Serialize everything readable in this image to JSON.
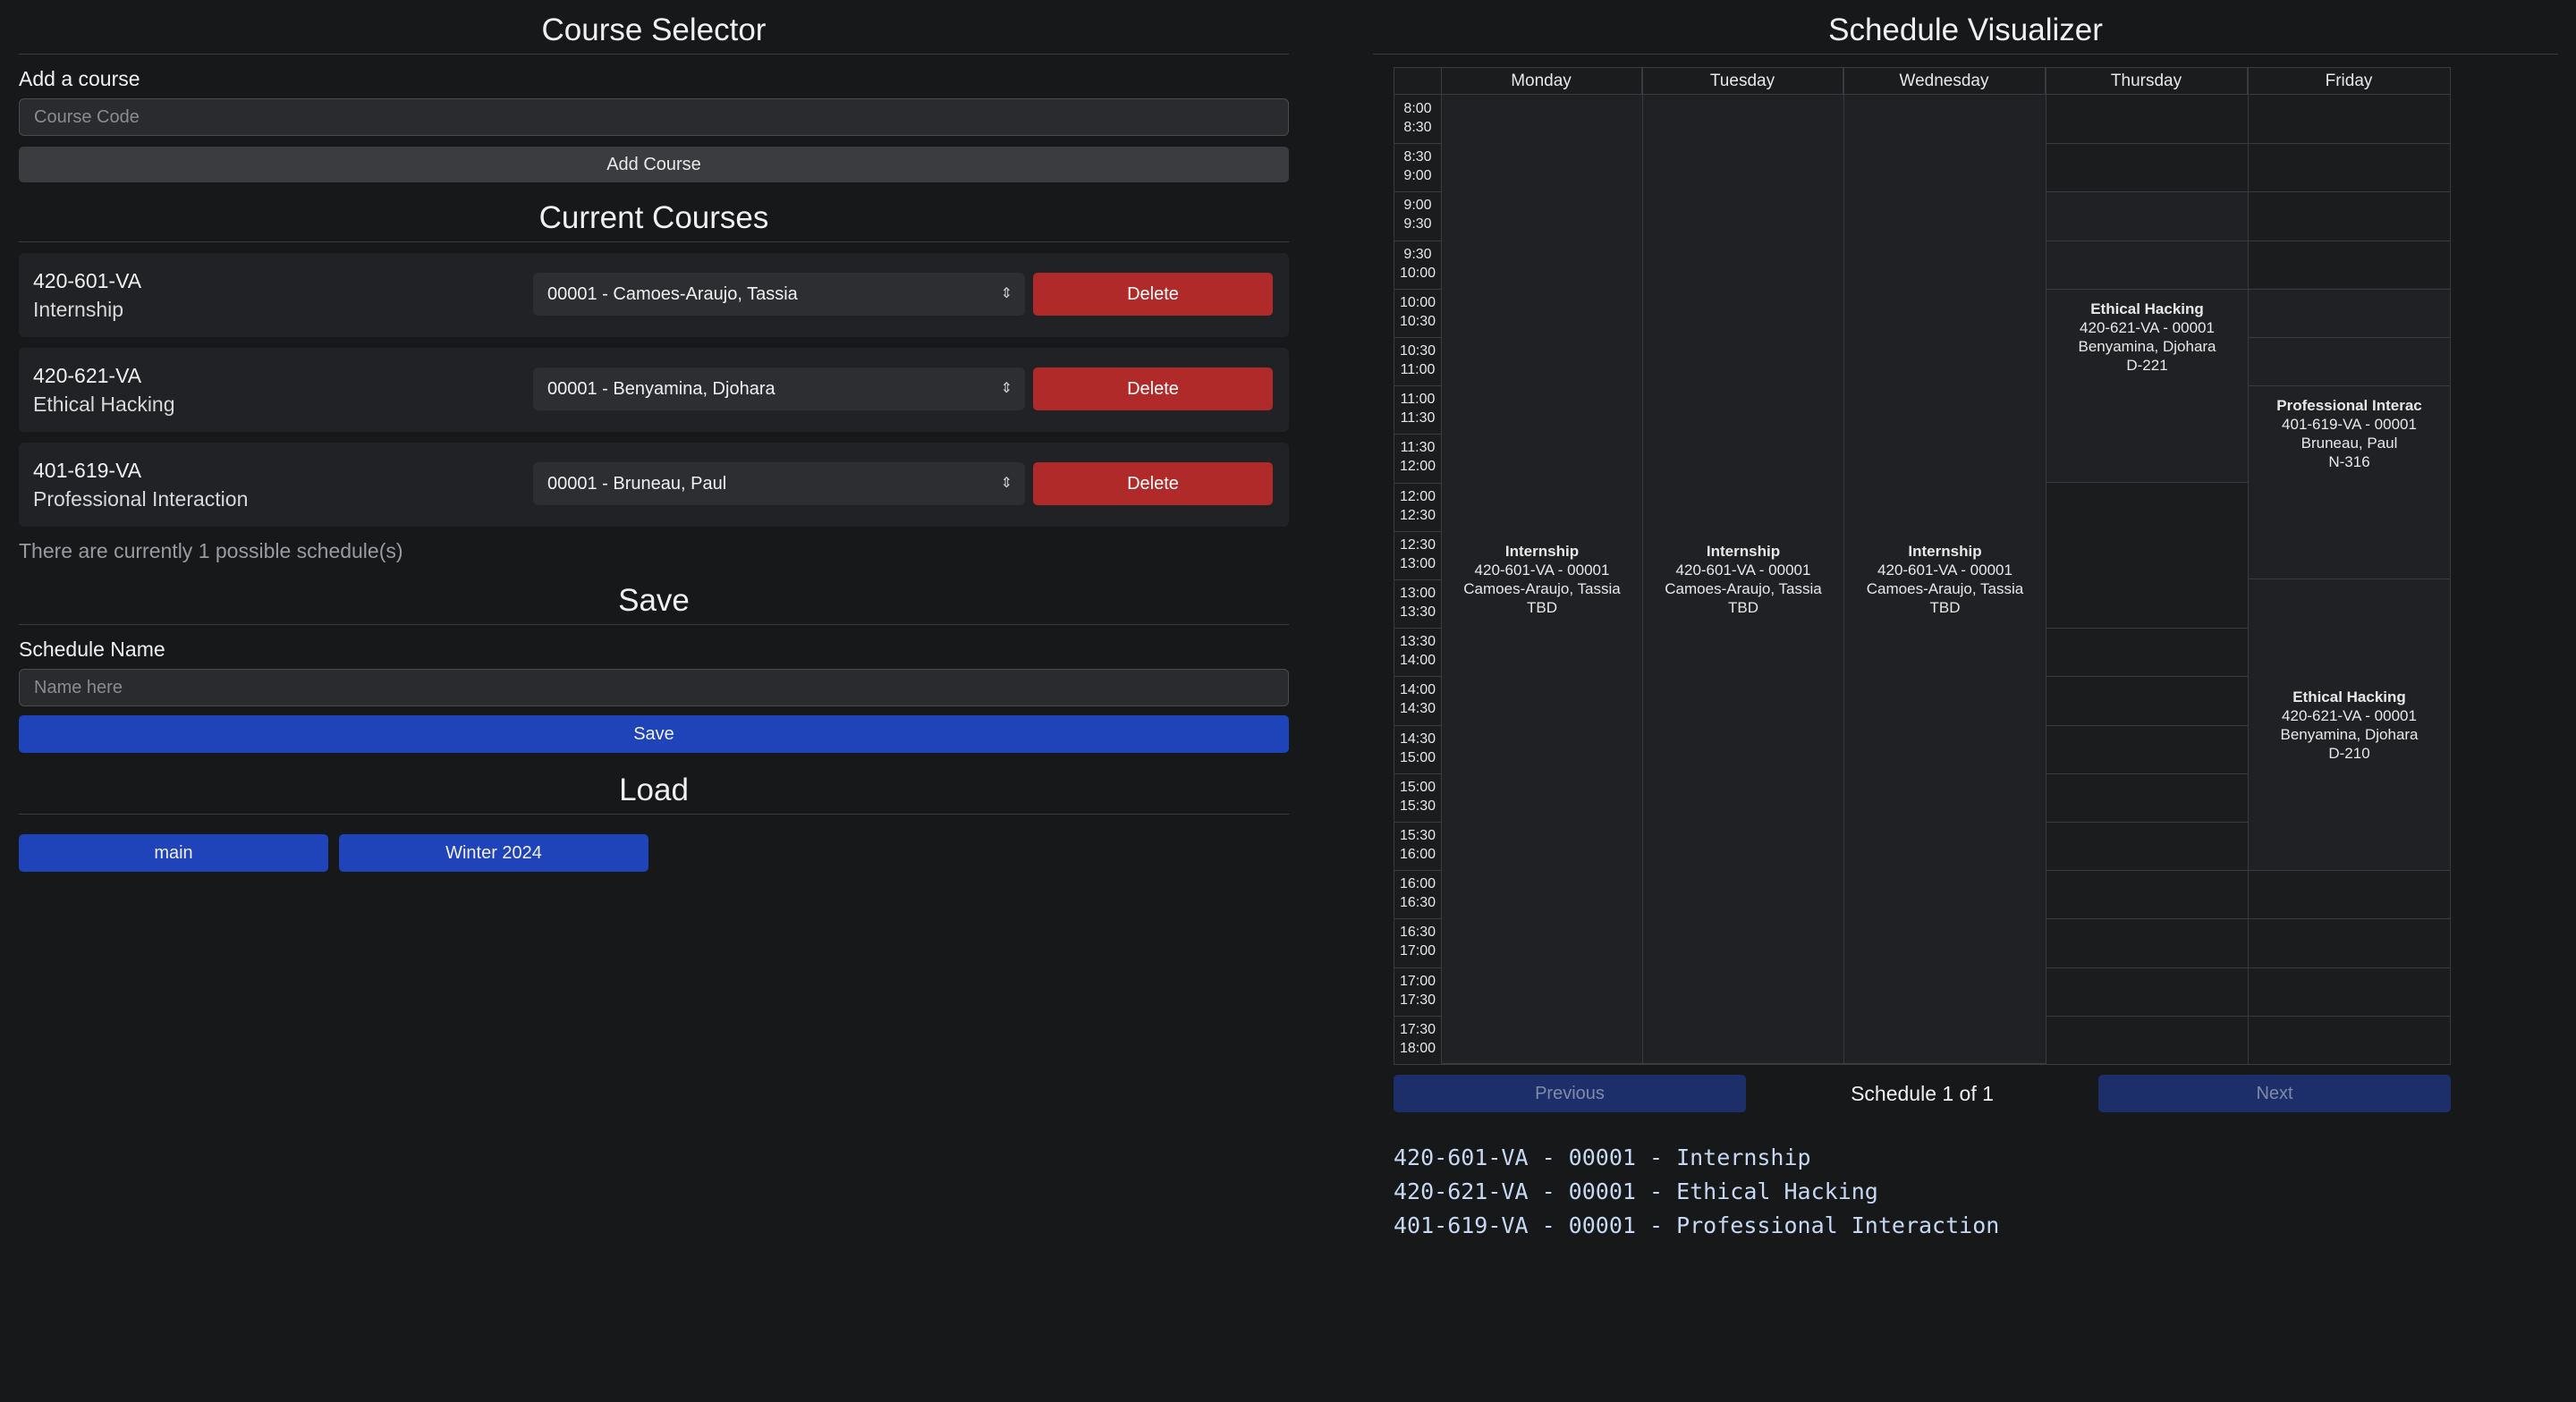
{
  "course_selector": {
    "title": "Course Selector",
    "add_label": "Add a course",
    "course_code_placeholder": "Course Code",
    "add_button": "Add Course",
    "current_title": "Current Courses",
    "courses": [
      {
        "code": "420-601-VA",
        "name": "Internship",
        "section": "00001 - Camoes-Araujo, Tassia",
        "delete": "Delete"
      },
      {
        "code": "420-621-VA",
        "name": "Ethical Hacking",
        "section": "00001 - Benyamina, Djohara",
        "delete": "Delete"
      },
      {
        "code": "401-619-VA",
        "name": "Professional Interaction",
        "section": "00001 - Bruneau, Paul",
        "delete": "Delete"
      }
    ],
    "possible_text": "There are currently 1 possible schedule(s)",
    "save_title": "Save",
    "schedule_name_label": "Schedule Name",
    "name_placeholder": "Name here",
    "save_button": "Save",
    "load_title": "Load",
    "load_buttons": [
      "main",
      "Winter 2024"
    ]
  },
  "visualizer": {
    "title": "Schedule Visualizer",
    "days": [
      "Monday",
      "Tuesday",
      "Wednesday",
      "Thursday",
      "Friday"
    ],
    "times": [
      [
        "8:00",
        "8:30"
      ],
      [
        "8:30",
        "9:00"
      ],
      [
        "9:00",
        "9:30"
      ],
      [
        "9:30",
        "10:00"
      ],
      [
        "10:00",
        "10:30"
      ],
      [
        "10:30",
        "11:00"
      ],
      [
        "11:00",
        "11:30"
      ],
      [
        "11:30",
        "12:00"
      ],
      [
        "12:00",
        "12:30"
      ],
      [
        "12:30",
        "13:00"
      ],
      [
        "13:00",
        "13:30"
      ],
      [
        "13:30",
        "14:00"
      ],
      [
        "14:00",
        "14:30"
      ],
      [
        "14:30",
        "15:00"
      ],
      [
        "15:00",
        "15:30"
      ],
      [
        "15:30",
        "16:00"
      ],
      [
        "16:00",
        "16:30"
      ],
      [
        "16:30",
        "17:00"
      ],
      [
        "17:00",
        "17:30"
      ],
      [
        "17:30",
        "18:00"
      ]
    ],
    "blocks": {
      "mon": {
        "title": "Internship",
        "line1": "420-601-VA - 00001",
        "line2": "Camoes-Araujo, Tassia",
        "line3": "TBD"
      },
      "tue": {
        "title": "Internship",
        "line1": "420-601-VA - 00001",
        "line2": "Camoes-Araujo, Tassia",
        "line3": "TBD"
      },
      "wed": {
        "title": "Internship",
        "line1": "420-601-VA - 00001",
        "line2": "Camoes-Araujo, Tassia",
        "line3": "TBD"
      },
      "thu": {
        "title": "Ethical Hacking",
        "line1": "420-621-VA - 00001",
        "line2": "Benyamina, Djohara",
        "line3": "D-221"
      },
      "fri1": {
        "title": "Professional Interac",
        "line1": "401-619-VA - 00001",
        "line2": "Bruneau, Paul",
        "line3": "N-316"
      },
      "fri2": {
        "title": "Ethical Hacking",
        "line1": "420-621-VA - 00001",
        "line2": "Benyamina, Djohara",
        "line3": "D-210"
      }
    },
    "previous": "Previous",
    "next": "Next",
    "pager_text": "Schedule 1 of 1",
    "summary": [
      "420-601-VA - 00001 - Internship",
      "420-621-VA - 00001 - Ethical Hacking",
      "401-619-VA - 00001 - Professional Interaction"
    ]
  }
}
